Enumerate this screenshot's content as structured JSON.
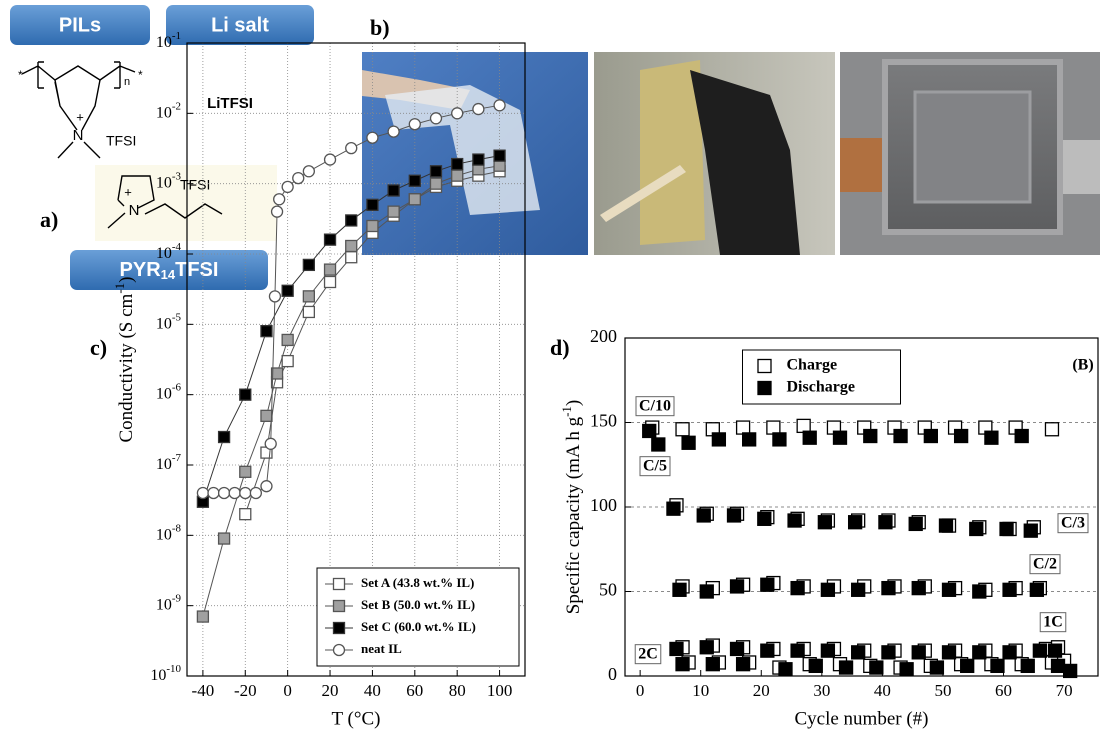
{
  "panel_labels": {
    "a": "a)",
    "b": "b)",
    "c": "c)",
    "d": "d)"
  },
  "panel_a": {
    "pils": "PILs",
    "li_salt": "Li salt",
    "salt_name": "LiTFSI",
    "pil_atom": "N",
    "pil_charge": "+",
    "pil_anion": "TFSI",
    "pil_repeat": "n",
    "pil_end_1": "*",
    "pil_end_2": "*",
    "il_atom": "N",
    "il_charge": "+",
    "il_anion": "TFSI",
    "il_name": [
      "PYR",
      "14",
      "TFSI"
    ]
  },
  "chart_data": [
    {
      "type": "line",
      "x_label": "T (°C)",
      "y_label": [
        "Conductivity (S cm",
        "-1",
        ")"
      ],
      "xlim": [
        -47.5,
        112
      ],
      "xticks": [
        -40,
        -20,
        0,
        20,
        40,
        60,
        80,
        100
      ],
      "ylim": [
        1e-10,
        0.1
      ],
      "log_y": true,
      "grid": true,
      "legend": "lower right",
      "yticks": [
        {
          "value": 1e-10,
          "label": "10-10"
        },
        {
          "value": 1e-09,
          "label": "10-9"
        },
        {
          "value": 1e-08,
          "label": "10-8"
        },
        {
          "value": 1e-07,
          "label": "10-7"
        },
        {
          "value": 1e-06,
          "label": "10-6"
        },
        {
          "value": 1e-05,
          "label": "10-5"
        },
        {
          "value": 0.0001,
          "label": "10-4"
        },
        {
          "value": 0.001,
          "label": "10-3"
        },
        {
          "value": 0.01,
          "label": "10-2"
        },
        {
          "value": 0.1,
          "label": "10-1"
        }
      ],
      "series": [
        {
          "name": "Set A (43.8 wt.% IL)",
          "color": "#555555",
          "fill": "#ffffff",
          "marker": "square",
          "x": [
            -20,
            -10,
            -5,
            0,
            10,
            20,
            30,
            40,
            50,
            60,
            70,
            80,
            90,
            100
          ],
          "values": [
            2e-08,
            1.5e-07,
            1.5e-06,
            3e-06,
            1.5e-05,
            4e-05,
            9e-05,
            0.0002,
            0.00035,
            0.0006,
            0.0009,
            0.0011,
            0.0013,
            0.0015
          ]
        },
        {
          "name": "Set B (50.0 wt.% IL)",
          "color": "#555555",
          "fill": "#a0a0a0",
          "marker": "square",
          "x": [
            -40,
            -30,
            -20,
            -10,
            -5,
            0,
            10,
            20,
            30,
            40,
            50,
            60,
            70,
            80,
            90,
            100
          ],
          "values": [
            7e-10,
            9e-09,
            8e-08,
            5e-07,
            2e-06,
            6e-06,
            2.5e-05,
            6e-05,
            0.00013,
            0.00025,
            0.0004,
            0.0006,
            0.001,
            0.0013,
            0.0016,
            0.0018
          ]
        },
        {
          "name": "Set C (60.0 wt.% IL)",
          "color": "#333333",
          "fill": "#000000",
          "marker": "square",
          "x": [
            -40,
            -30,
            -20,
            -10,
            0,
            10,
            20,
            30,
            40,
            50,
            60,
            70,
            80,
            90,
            100
          ],
          "values": [
            3e-08,
            2.5e-07,
            1e-06,
            8e-06,
            3e-05,
            7e-05,
            0.00016,
            0.0003,
            0.0005,
            0.0008,
            0.0011,
            0.0015,
            0.0019,
            0.0022,
            0.0025
          ]
        },
        {
          "name": "neat IL",
          "color": "#555555",
          "fill": "#ffffff",
          "marker": "circle",
          "x": [
            -40,
            -35,
            -30,
            -25,
            -20,
            -15,
            -10,
            -8,
            -6,
            -5,
            -4,
            0,
            5,
            10,
            20,
            30,
            40,
            50,
            60,
            70,
            80,
            90,
            100
          ],
          "values": [
            4e-08,
            4e-08,
            4e-08,
            4e-08,
            4e-08,
            4e-08,
            5e-08,
            2e-07,
            2.5e-05,
            0.0004,
            0.0006,
            0.0009,
            0.0012,
            0.0015,
            0.0022,
            0.0032,
            0.0045,
            0.0055,
            0.007,
            0.0085,
            0.01,
            0.0115,
            0.013
          ]
        }
      ]
    },
    {
      "type": "scatter",
      "x_label": "Cycle number (#)",
      "y_label": [
        "Specific capacity (mA h g",
        "-1",
        ")"
      ],
      "xlim": [
        -2.5,
        75.6
      ],
      "xticks": [
        0,
        10,
        20,
        30,
        40,
        50,
        60,
        70
      ],
      "ylim": [
        0,
        200
      ],
      "yticks": [
        0,
        50,
        100,
        150,
        200
      ],
      "grid": true,
      "legend": "upper center",
      "annotations": [
        "(B)",
        "C/10",
        "C/5",
        "C/3",
        "C/2",
        "1C",
        "2C"
      ],
      "series": [
        {
          "name": "Charge",
          "color": "#000000",
          "fill": "#ffffff",
          "marker": "square",
          "x": [
            2,
            7,
            12,
            17,
            22,
            27,
            32,
            37,
            42,
            47,
            52,
            57,
            62,
            68,
            6,
            11,
            16,
            21,
            26,
            31,
            36,
            41,
            46,
            51,
            56,
            61,
            65,
            7,
            12,
            17,
            22,
            27,
            32,
            37,
            42,
            47,
            52,
            57,
            62,
            66,
            7,
            12,
            17,
            22,
            27,
            32,
            37,
            42,
            47,
            52,
            57,
            62,
            67,
            69,
            8,
            13,
            18,
            23,
            28,
            33,
            38,
            43,
            48,
            53,
            58,
            63,
            68,
            70
          ],
          "values": [
            147,
            146,
            146,
            147,
            147,
            148,
            147,
            147,
            147,
            147,
            147,
            147,
            147,
            146,
            101,
            96,
            96,
            94,
            93,
            92,
            92,
            92,
            91,
            89,
            88,
            87,
            88,
            53,
            52,
            54,
            55,
            53,
            53,
            53,
            53,
            53,
            52,
            51,
            52,
            52,
            17,
            18,
            17,
            16,
            16,
            16,
            15,
            15,
            15,
            15,
            15,
            15,
            16,
            17,
            8,
            8,
            8,
            5,
            7,
            7,
            6,
            5,
            6,
            7,
            7,
            7,
            8,
            9
          ]
        },
        {
          "name": "Discharge",
          "color": "#000000",
          "fill": "#000000",
          "marker": "square",
          "x": [
            1.5,
            3,
            8,
            13,
            18,
            23,
            28,
            33,
            38,
            43,
            48,
            53,
            58,
            63,
            5.5,
            10.5,
            15.5,
            20.5,
            25.5,
            30.5,
            35.5,
            40.5,
            45.5,
            50.5,
            55.5,
            60.5,
            64.5,
            6.5,
            11,
            16,
            21,
            26,
            31,
            36,
            41,
            46,
            51,
            56,
            61,
            65.5,
            6,
            11,
            16,
            21,
            26,
            31,
            36,
            41,
            46,
            51,
            56,
            61,
            66,
            68.5,
            7,
            12,
            17,
            24,
            29,
            34,
            39,
            44,
            49,
            54,
            59,
            64,
            69,
            71
          ],
          "values": [
            145,
            137,
            138,
            140,
            140,
            140,
            141,
            141,
            142,
            142,
            142,
            142,
            141,
            142,
            99,
            95,
            95,
            93,
            92,
            91,
            91,
            91,
            90,
            89,
            87,
            87,
            86,
            51,
            50,
            53,
            54,
            52,
            51,
            51,
            52,
            52,
            51,
            50,
            51,
            51,
            16,
            17,
            16,
            15,
            15,
            15,
            14,
            14,
            14,
            14,
            14,
            14,
            15,
            15,
            7,
            7,
            7,
            4,
            6,
            5,
            5,
            4,
            5,
            6,
            6,
            6,
            6,
            3
          ]
        }
      ]
    }
  ]
}
